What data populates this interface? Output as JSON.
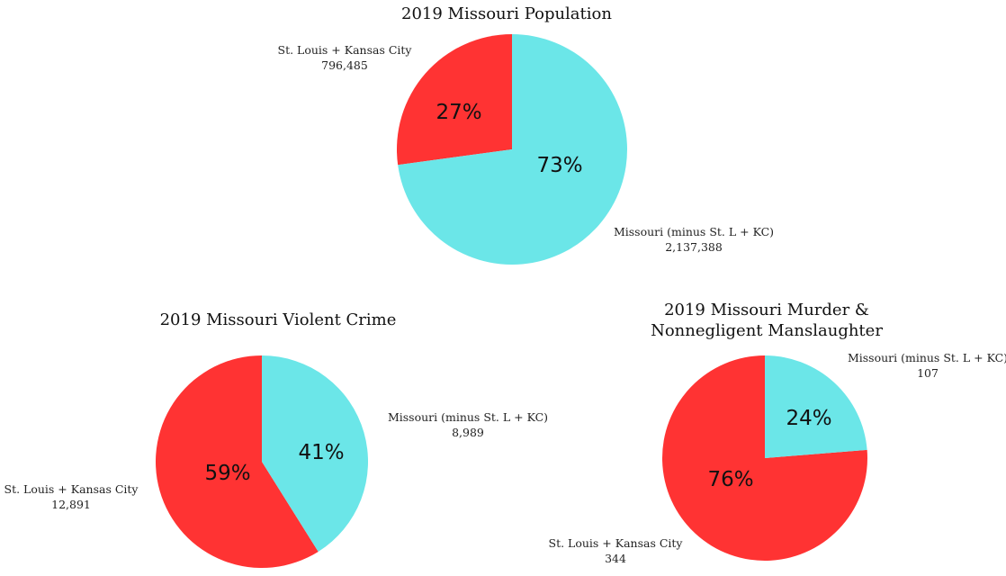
{
  "colors": {
    "cities": "#ff3333",
    "rest": "#6be6e8"
  },
  "chart_data": [
    {
      "type": "pie",
      "title": "2019 Missouri Population",
      "slices": [
        {
          "name": "St. Louis + Kansas City",
          "value": 796485,
          "value_label": "796,485",
          "percent_label": "27%",
          "color": "#ff3333"
        },
        {
          "name": "Missouri (minus St. L + KC)",
          "value": 2137388,
          "value_label": "2,137,388",
          "percent_label": "73%",
          "color": "#6be6e8"
        }
      ]
    },
    {
      "type": "pie",
      "title": "2019 Missouri Violent Crime",
      "slices": [
        {
          "name": "St. Louis + Kansas City",
          "value": 12891,
          "value_label": "12,891",
          "percent_label": "59%",
          "color": "#ff3333"
        },
        {
          "name": "Missouri (minus St. L + KC)",
          "value": 8989,
          "value_label": "8,989",
          "percent_label": "41%",
          "color": "#6be6e8"
        }
      ]
    },
    {
      "type": "pie",
      "title": "2019 Missouri Murder & Nonnegligent Manslaughter",
      "title_lines": [
        "2019 Missouri Murder &",
        "Nonnegligent Manslaughter"
      ],
      "slices": [
        {
          "name": "St. Louis + Kansas City",
          "value": 344,
          "value_label": "344",
          "percent_label": "76%",
          "color": "#ff3333"
        },
        {
          "name": "Missouri (minus St. L + KC)",
          "value": 107,
          "value_label": "107",
          "percent_label": "24%",
          "color": "#6be6e8"
        }
      ]
    }
  ]
}
